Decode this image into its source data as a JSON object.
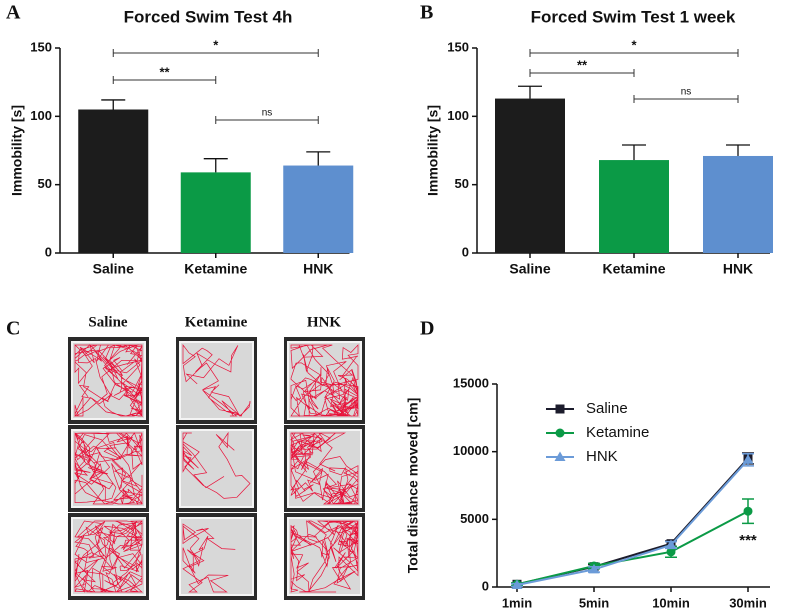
{
  "chart_data": [
    {
      "type": "bar",
      "panel": "A",
      "title": "Forced Swim Test 4h",
      "y_label": "Immobility [s]",
      "categories": [
        "Saline",
        "Ketamine",
        "HNK"
      ],
      "values": [
        105,
        59,
        64
      ],
      "errors": [
        7,
        10,
        10
      ],
      "colors": [
        "#1c1c1c",
        "#0b9a46",
        "#5e8fcf"
      ],
      "ylim": [
        0,
        150
      ],
      "yticks": [
        0,
        50,
        100,
        150
      ],
      "annotations": [
        "*",
        "**",
        "ns"
      ]
    },
    {
      "type": "bar",
      "panel": "B",
      "title": "Forced Swim Test 1 week",
      "y_label": "Immobility [s]",
      "categories": [
        "Saline",
        "Ketamine",
        "HNK"
      ],
      "values": [
        113,
        68,
        71
      ],
      "errors": [
        9,
        11,
        8
      ],
      "colors": [
        "#1c1c1c",
        "#0b9a46",
        "#5e8fcf"
      ],
      "ylim": [
        0,
        150
      ],
      "yticks": [
        0,
        50,
        100,
        150
      ],
      "annotations": [
        "*",
        "**",
        "ns"
      ]
    },
    {
      "type": "line",
      "panel": "D",
      "y_label": "Total distance moved [cm]",
      "categories": [
        "1min",
        "5min",
        "10min",
        "30min"
      ],
      "series": [
        {
          "name": "Saline",
          "color": "#1c1c2c",
          "marker": "square",
          "values": [
            200,
            1500,
            3200,
            9500
          ],
          "errors": [
            100,
            150,
            200,
            400
          ]
        },
        {
          "name": "Ketamine",
          "color": "#0b9a46",
          "marker": "circle",
          "values": [
            200,
            1550,
            2600,
            5600
          ],
          "errors": [
            100,
            200,
            400,
            900
          ]
        },
        {
          "name": "HNK",
          "color": "#6b9bd8",
          "marker": "triangle",
          "values": [
            150,
            1300,
            3100,
            9400
          ],
          "errors": [
            100,
            200,
            250,
            450
          ]
        }
      ],
      "ylim": [
        0,
        15000
      ],
      "yticks": [
        0,
        5000,
        10000,
        15000
      ],
      "annotations": [
        "***"
      ],
      "legend": "upper left"
    }
  ],
  "panel_c": {
    "panel": "C",
    "columns": [
      "Saline",
      "Ketamine",
      "HNK"
    ]
  }
}
